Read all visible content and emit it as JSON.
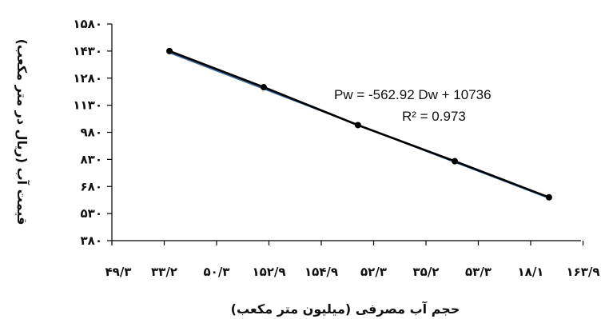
{
  "chart_data": {
    "type": "line",
    "xlabel": "حجم آب مصرفی (میلیون متر مکعب)",
    "ylabel": "قیمت آب (ریال در متر مکعب)",
    "x_tick_labels": [
      "۴۹/۳",
      "۳۳/۲",
      "۵۰/۳",
      "۱۵۲/۹",
      "۱۵۴/۹",
      "۵۲/۳",
      "۳۵/۲",
      "۵۳/۳",
      "۱۸/۱",
      "۱۶۳/۹"
    ],
    "y_tick_labels": [
      "۳۸۰",
      "۵۳۰",
      "۶۸۰",
      "۸۳۰",
      "۹۸۰",
      "۱۱۳۰",
      "۱۲۸۰",
      "۱۴۳۰",
      "۱۵۸۰"
    ],
    "ylim": [
      380,
      1580
    ],
    "y_ticks": [
      380,
      530,
      680,
      830,
      980,
      1130,
      1280,
      1430,
      1580
    ],
    "x_tick_count": 10,
    "points_x_tick_index": [
      1.1,
      2.9,
      4.7,
      6.55,
      8.35
    ],
    "series": [
      {
        "values": [
          1430,
          1230,
          1020,
          820,
          620
        ],
        "color": "#000000",
        "marker": "circle"
      }
    ],
    "trendline": {
      "color": "#3a6ea5"
    },
    "annotations": {
      "equation": "Pw = -562.92 Dw + 10736",
      "r_squared": "R² = 0.973"
    },
    "grid": false,
    "legend": "none"
  }
}
